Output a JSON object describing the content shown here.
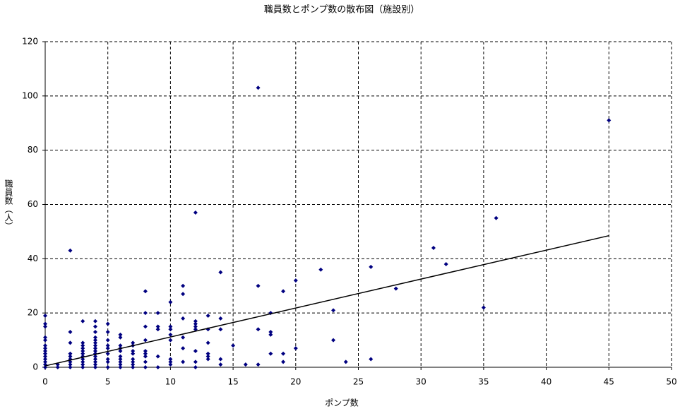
{
  "chart_data": {
    "type": "scatter",
    "title": "職員数とポンプ数の散布図（施設別）",
    "x_label": "ポンプ数",
    "y_label": "職員数（人）",
    "xlim": [
      0,
      50
    ],
    "xticks": [
      0,
      5,
      10,
      15,
      20,
      25,
      30,
      35,
      40,
      45,
      50
    ],
    "ylim": [
      0,
      120
    ],
    "yticks": [
      0,
      20,
      40,
      60,
      80,
      100,
      120
    ],
    "grid": true,
    "series": [
      {
        "color": "#000080",
        "x": [
          0,
          0,
          0,
          0,
          0,
          0,
          0,
          0,
          0,
          0,
          0,
          0,
          0,
          0,
          1,
          1,
          2,
          2,
          2,
          2,
          2,
          2,
          2,
          2,
          2,
          3,
          3,
          3,
          3,
          3,
          3,
          3,
          3,
          3,
          3,
          3,
          4,
          4,
          4,
          4,
          4,
          4,
          4,
          4,
          4,
          4,
          4,
          4,
          4,
          4,
          4,
          5,
          5,
          5,
          5,
          5,
          5,
          5,
          5,
          5,
          6,
          6,
          6,
          6,
          6,
          6,
          6,
          6,
          6,
          6,
          7,
          7,
          7,
          7,
          7,
          7,
          7,
          7,
          8,
          8,
          8,
          8,
          8,
          8,
          8,
          8,
          8,
          9,
          9,
          9,
          9,
          9,
          10,
          10,
          10,
          10,
          10,
          10,
          10,
          10,
          11,
          11,
          11,
          11,
          11,
          11,
          12,
          12,
          12,
          12,
          12,
          12,
          12,
          12,
          13,
          13,
          13,
          13,
          13,
          13,
          14,
          14,
          14,
          14,
          14,
          15,
          16,
          17,
          17,
          17,
          17,
          18,
          18,
          18,
          18,
          19,
          19,
          19,
          20,
          20,
          22,
          23,
          23,
          24,
          26,
          26,
          28,
          31,
          32,
          35,
          36,
          45
        ],
        "y": [
          0,
          1,
          2,
          3,
          4,
          5,
          6,
          7,
          8,
          10,
          11,
          15,
          16,
          19,
          0,
          1,
          0,
          1,
          2,
          3,
          4,
          5,
          9,
          13,
          43,
          0,
          1,
          2,
          3,
          4,
          5,
          6,
          7,
          8,
          9,
          17,
          0,
          1,
          2,
          3,
          4,
          5,
          6,
          7,
          8,
          9,
          10,
          11,
          13,
          15,
          17,
          0,
          2,
          3,
          5,
          7,
          8,
          10,
          13,
          16,
          0,
          1,
          2,
          3,
          4,
          6,
          7,
          8,
          11,
          12,
          0,
          1,
          2,
          3,
          5,
          6,
          8,
          9,
          0,
          2,
          4,
          5,
          6,
          10,
          15,
          20,
          28,
          0,
          4,
          14,
          15,
          20,
          1,
          2,
          3,
          10,
          12,
          14,
          15,
          24,
          2,
          7,
          11,
          18,
          27,
          30,
          0,
          2,
          6,
          14,
          15,
          16,
          17,
          57,
          3,
          4,
          5,
          9,
          14,
          19,
          1,
          3,
          14,
          18,
          35,
          8,
          1,
          1,
          14,
          30,
          103,
          5,
          12,
          13,
          20,
          2,
          5,
          28,
          7,
          32,
          36,
          10,
          21,
          2,
          3,
          37,
          29,
          44,
          38,
          22,
          55,
          91
        ]
      }
    ],
    "trendline": {
      "color": "#000000",
      "x": [
        0,
        45
      ],
      "y": [
        0.5,
        48.5
      ]
    }
  }
}
